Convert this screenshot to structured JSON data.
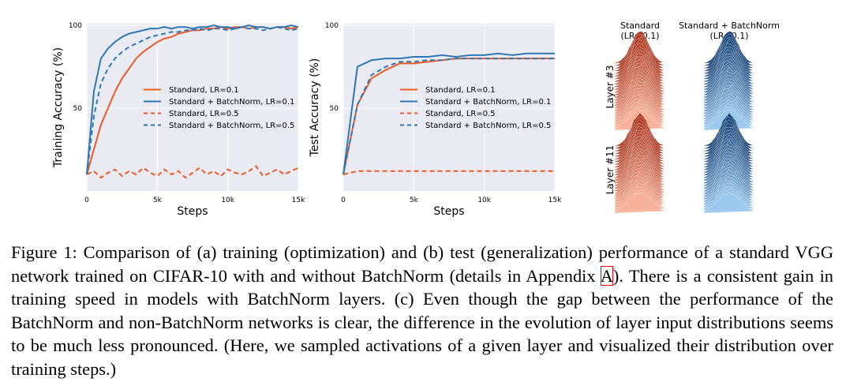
{
  "chart_data": [
    {
      "type": "line",
      "ylabel": "Training Accuracy (%)",
      "xlabel": "Steps",
      "x": [
        0,
        500,
        1000,
        1500,
        2000,
        2500,
        3000,
        3500,
        4000,
        4500,
        5000,
        5500,
        6000,
        6500,
        7000,
        7500,
        8000,
        8500,
        9000,
        9500,
        10000,
        10500,
        11000,
        11500,
        12000,
        12500,
        13000,
        13500,
        14000,
        14500,
        15000
      ],
      "xlim": [
        0,
        15000
      ],
      "ylim": [
        0,
        101
      ],
      "xticks": [
        0,
        {
          "value": 5000,
          "label": "5k"
        },
        {
          "value": 10000,
          "label": "10k"
        },
        {
          "value": 15000,
          "label": "15k"
        }
      ],
      "yticks": [
        50,
        100
      ],
      "grid": true,
      "legend": "center right",
      "series": [
        {
          "name": "Standard, LR=0.1",
          "color": "#ee5a24",
          "dash": false,
          "values": [
            10,
            25,
            40,
            50,
            60,
            68,
            74,
            80,
            84,
            87,
            90,
            92,
            93,
            95,
            96,
            97,
            97,
            98,
            98,
            99,
            98,
            99,
            99,
            98,
            99,
            99,
            98,
            99,
            99,
            98,
            99
          ]
        },
        {
          "name": "Standard + BatchNorm, LR=0.1",
          "color": "#2f77b4",
          "dash": false,
          "values": [
            10,
            60,
            80,
            86,
            90,
            93,
            95,
            96,
            97,
            98,
            98,
            99,
            98,
            99,
            99,
            98,
            99,
            99,
            100,
            99,
            99,
            98,
            99,
            100,
            99,
            99,
            98,
            99,
            99,
            100,
            99
          ]
        },
        {
          "name": "Standard, LR=0.5",
          "color": "#ee5a24",
          "dash": true,
          "values": [
            10,
            12,
            8,
            11,
            13,
            9,
            12,
            10,
            14,
            11,
            9,
            13,
            10,
            12,
            8,
            11,
            14,
            10,
            12,
            9,
            13,
            11,
            10,
            12,
            15,
            9,
            11,
            13,
            10,
            12,
            14
          ]
        },
        {
          "name": "Standard + BatchNorm, LR=0.5",
          "color": "#2f77b4",
          "dash": true,
          "values": [
            10,
            45,
            65,
            74,
            80,
            84,
            87,
            89,
            91,
            93,
            94,
            95,
            96,
            96,
            97,
            97,
            98,
            97,
            98,
            98,
            97,
            98,
            99,
            98,
            98,
            97,
            98,
            99,
            98,
            97,
            98
          ]
        }
      ]
    },
    {
      "type": "line",
      "ylabel": "Test Accuracy (%)",
      "xlabel": "Steps",
      "x": [
        0,
        1000,
        2000,
        3000,
        4000,
        5000,
        6000,
        7000,
        8000,
        9000,
        10000,
        11000,
        12000,
        13000,
        14000,
        15000
      ],
      "xlim": [
        0,
        15000
      ],
      "ylim": [
        0,
        101
      ],
      "xticks": [
        0,
        {
          "value": 5000,
          "label": "5k"
        },
        {
          "value": 10000,
          "label": "10k"
        },
        {
          "value": 15000,
          "label": "15k"
        }
      ],
      "yticks": [
        50,
        100
      ],
      "grid": true,
      "legend": "center right",
      "series": [
        {
          "name": "Standard, LR=0.1",
          "color": "#ee5a24",
          "dash": false,
          "values": [
            10,
            52,
            68,
            73,
            77,
            77,
            78,
            79,
            80,
            80,
            80,
            80,
            80,
            80,
            80,
            80
          ]
        },
        {
          "name": "Standard + BatchNorm, LR=0.1",
          "color": "#2f77b4",
          "dash": false,
          "values": [
            10,
            75,
            79,
            80,
            80,
            81,
            81,
            82,
            81,
            82,
            82,
            83,
            82,
            83,
            83,
            83
          ]
        },
        {
          "name": "Standard, LR=0.5",
          "color": "#ee5a24",
          "dash": true,
          "values": [
            10,
            12,
            12,
            12,
            12,
            12,
            12,
            12,
            12,
            12,
            12,
            12,
            12,
            12,
            12,
            12
          ]
        },
        {
          "name": "Standard + BatchNorm, LR=0.5",
          "color": "#2f77b4",
          "dash": true,
          "values": [
            10,
            52,
            70,
            75,
            78,
            78,
            79,
            79,
            80,
            80,
            80,
            80,
            80,
            80,
            80,
            80
          ]
        }
      ]
    }
  ],
  "panel_c": {
    "columns": [
      {
        "title": "Standard",
        "subtitle": "(LR=0.1)"
      },
      {
        "title": "Standard + BatchNorm",
        "subtitle": "(LR=0.1)"
      }
    ],
    "rows": [
      "Layer #3",
      "Layer #11"
    ]
  },
  "caption": {
    "before": "Figure 1: Comparison of (a) training (optimization) and (b) test (generalization) performance of a standard VGG network trained on CIFAR-10 with and without BatchNorm (details in Appendix ",
    "link": "A",
    "after": "). There is a consistent gain in training speed in models with BatchNorm layers. (c) Even though the gap between the performance of the BatchNorm and non-BatchNorm networks is clear, the difference in the evolution of layer input distributions seems to be much less pronounced. (Here, we sampled activations of a given layer and visualized their distribution over training steps.)"
  }
}
